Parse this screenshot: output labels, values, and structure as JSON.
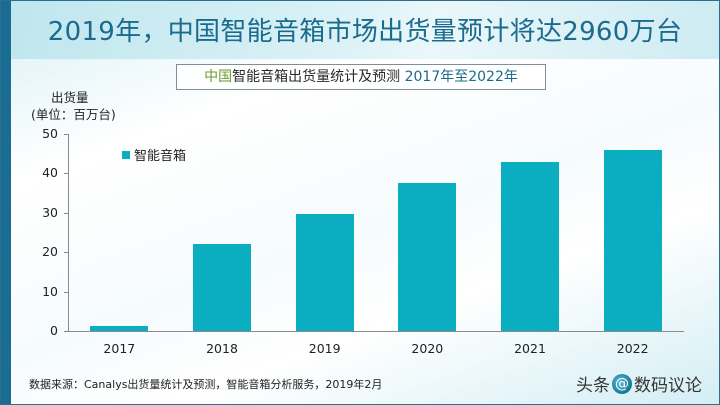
{
  "slide": {
    "title": "2019年，中国智能音箱市场出货量预计将达2960万台",
    "subtitle": {
      "accent": "中国",
      "main": "智能音箱出货量统计及预测",
      "years": " 2017年至2022年"
    },
    "y_axis_label_line1": "出货量",
    "y_axis_label_line2": "(单位：百万台)",
    "source": "数据来源：Canalys出货量统计及预测，智能音箱分析服务，2019年2月",
    "watermark": {
      "prefix": "头条",
      "at": "@",
      "name": "数码议论"
    },
    "colors": {
      "bar": "#0aaec0",
      "title": "#1b6b8e",
      "accent_green": "#6a9a2e",
      "left_bar": "#1a6c92"
    }
  },
  "chart_data": {
    "type": "bar",
    "title": "中国智能音箱出货量统计及预测 2017年至2022年",
    "xlabel": "",
    "ylabel": "出货量 (单位：百万台)",
    "categories": [
      "2017",
      "2018",
      "2019",
      "2020",
      "2021",
      "2022"
    ],
    "series": [
      {
        "name": "智能音箱",
        "values": [
          1.3,
          22.0,
          29.6,
          37.5,
          42.8,
          46.0
        ]
      }
    ],
    "ylim": [
      0,
      50
    ],
    "yticks": [
      "0",
      "10",
      "20",
      "30",
      "40",
      "50"
    ],
    "grid": false,
    "legend_position": "top-left inside"
  }
}
